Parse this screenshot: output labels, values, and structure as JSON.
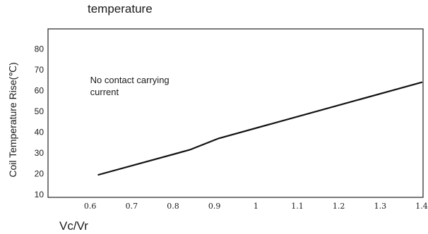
{
  "chart_data": {
    "type": "line",
    "title": "temperature",
    "xlabel": "Vc/Vr",
    "ylabel": "Coil Temperature Rise(℃)",
    "xlim": [
      0.5,
      1.4
    ],
    "ylim": [
      10,
      88
    ],
    "x_ticks": [
      0.6,
      0.7,
      0.8,
      0.9,
      1.0,
      1.1,
      1.2,
      1.3,
      1.4
    ],
    "x_tick_labels": [
      "0.6",
      "0.7",
      "0.8",
      "0.9",
      "1",
      "1.1",
      "1.2",
      "1.3",
      "1.4"
    ],
    "y_ticks": [
      10,
      20,
      30,
      40,
      50,
      60,
      70,
      80
    ],
    "y_tick_labels": [
      "10",
      "20",
      "30",
      "40",
      "50",
      "60",
      "70",
      "80"
    ],
    "grid": false,
    "series": [
      {
        "x": [
          0.62,
          0.84,
          0.91,
          1.4
        ],
        "y": [
          19.5,
          31.5,
          37,
          64
        ]
      }
    ],
    "annotations": [
      {
        "line1": "No contact carrying",
        "line2": "current",
        "x": 0.6,
        "y": 63.5
      }
    ]
  }
}
